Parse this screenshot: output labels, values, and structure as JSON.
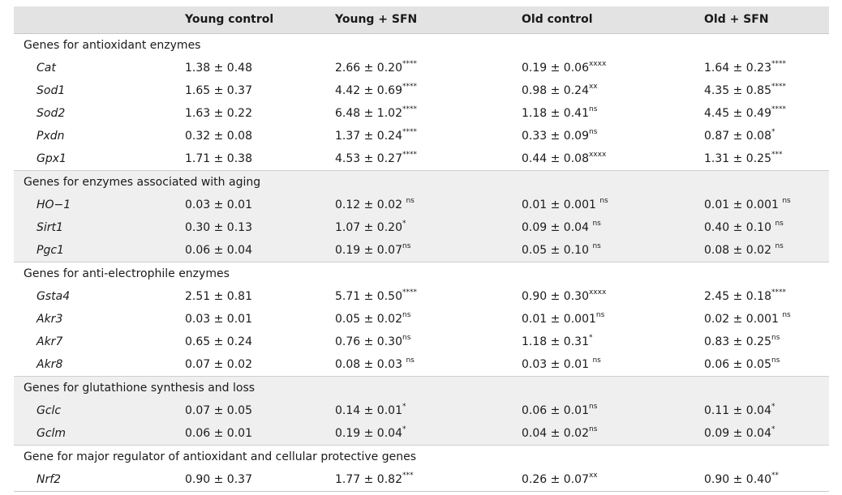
{
  "headers": [
    "",
    "Young control",
    "Young + SFN",
    "Old control",
    "Old + SFN"
  ],
  "sections": [
    {
      "title": "Genes for antioxidant enzymes",
      "shaded": false,
      "rows": [
        {
          "gene": "Cat",
          "values": [
            {
              "v": "1.38 ± 0.48",
              "s": ""
            },
            {
              "v": "2.66 ± 0.20",
              "s": "****"
            },
            {
              "v": "0.19 ± 0.06",
              "s": "xxxx"
            },
            {
              "v": "1.64 ± 0.23",
              "s": "****"
            }
          ]
        },
        {
          "gene": "Sod1",
          "values": [
            {
              "v": "1.65 ± 0.37",
              "s": ""
            },
            {
              "v": "4.42 ± 0.69",
              "s": "****"
            },
            {
              "v": "0.98 ± 0.24",
              "s": "xx"
            },
            {
              "v": "4.35 ± 0.85",
              "s": "****"
            }
          ]
        },
        {
          "gene": "Sod2",
          "values": [
            {
              "v": "1.63 ± 0.22",
              "s": ""
            },
            {
              "v": "6.48 ± 1.02",
              "s": "****"
            },
            {
              "v": "1.18 ± 0.41",
              "s": "ns"
            },
            {
              "v": "4.45 ± 0.49",
              "s": "****"
            }
          ]
        },
        {
          "gene": "Pxdn",
          "values": [
            {
              "v": "0.32 ± 0.08",
              "s": ""
            },
            {
              "v": "1.37 ± 0.24",
              "s": "****"
            },
            {
              "v": "0.33 ± 0.09",
              "s": "ns"
            },
            {
              "v": "0.87 ± 0.08",
              "s": "*"
            }
          ]
        },
        {
          "gene": "Gpx1",
          "values": [
            {
              "v": "1.71 ± 0.38",
              "s": ""
            },
            {
              "v": "4.53 ± 0.27",
              "s": "****"
            },
            {
              "v": "0.44 ± 0.08",
              "s": "xxxx"
            },
            {
              "v": "1.31 ± 0.25",
              "s": "***"
            }
          ]
        }
      ]
    },
    {
      "title": "Genes for enzymes associated with aging",
      "shaded": true,
      "rows": [
        {
          "gene": "HO−1",
          "values": [
            {
              "v": "0.03 ± 0.01",
              "s": ""
            },
            {
              "v": "0.12 ± 0.02 ",
              "s": "ns"
            },
            {
              "v": "0.01 ± 0.001 ",
              "s": "ns"
            },
            {
              "v": "0.01 ± 0.001 ",
              "s": "ns"
            }
          ]
        },
        {
          "gene": "Sirt1",
          "values": [
            {
              "v": "0.30 ± 0.13",
              "s": ""
            },
            {
              "v": "1.07 ± 0.20",
              "s": "*"
            },
            {
              "v": "0.09 ± 0.04 ",
              "s": "ns"
            },
            {
              "v": "0.40 ± 0.10 ",
              "s": "ns"
            }
          ]
        },
        {
          "gene": "Pgc1",
          "values": [
            {
              "v": "0.06 ± 0.04",
              "s": ""
            },
            {
              "v": "0.19 ± 0.07",
              "s": "ns"
            },
            {
              "v": "0.05 ± 0.10 ",
              "s": "ns"
            },
            {
              "v": "0.08 ± 0.02 ",
              "s": "ns"
            }
          ]
        }
      ]
    },
    {
      "title": "Genes for anti-electrophile enzymes",
      "shaded": false,
      "rows": [
        {
          "gene": "Gsta4",
          "values": [
            {
              "v": "2.51 ± 0.81",
              "s": ""
            },
            {
              "v": "5.71 ± 0.50",
              "s": "****"
            },
            {
              "v": "0.90 ± 0.30",
              "s": "xxxx"
            },
            {
              "v": "2.45 ± 0.18",
              "s": "****"
            }
          ]
        },
        {
          "gene": "Akr3",
          "values": [
            {
              "v": "0.03 ± 0.01",
              "s": ""
            },
            {
              "v": "0.05 ± 0.02",
              "s": "ns"
            },
            {
              "v": "0.01 ± 0.001",
              "s": "ns"
            },
            {
              "v": "0.02 ± 0.001 ",
              "s": "ns"
            }
          ]
        },
        {
          "gene": "Akr7",
          "values": [
            {
              "v": "0.65 ± 0.24",
              "s": ""
            },
            {
              "v": "0.76 ± 0.30",
              "s": "ns"
            },
            {
              "v": "1.18 ± 0.31",
              "s": "*"
            },
            {
              "v": "0.83 ± 0.25",
              "s": "ns"
            }
          ]
        },
        {
          "gene": "Akr8",
          "values": [
            {
              "v": "0.07 ± 0.02",
              "s": ""
            },
            {
              "v": "0.08 ± 0.03 ",
              "s": "ns"
            },
            {
              "v": "0.03 ± 0.01 ",
              "s": "ns"
            },
            {
              "v": "0.06 ± 0.05",
              "s": "ns"
            }
          ]
        }
      ]
    },
    {
      "title": "Genes for glutathione synthesis and loss",
      "shaded": true,
      "rows": [
        {
          "gene": "Gclc",
          "values": [
            {
              "v": "0.07 ± 0.05",
              "s": ""
            },
            {
              "v": "0.14 ± 0.01",
              "s": "*"
            },
            {
              "v": "0.06 ± 0.01",
              "s": "ns"
            },
            {
              "v": "0.11 ± 0.04",
              "s": "*"
            }
          ]
        },
        {
          "gene": "Gclm",
          "values": [
            {
              "v": "0.06 ± 0.01",
              "s": ""
            },
            {
              "v": "0.19 ± 0.04",
              "s": "*"
            },
            {
              "v": "0.04 ± 0.02",
              "s": "ns"
            },
            {
              "v": "0.09 ± 0.04",
              "s": "*"
            }
          ]
        }
      ]
    },
    {
      "title": "Gene for major regulator of antioxidant and cellular protective genes",
      "shaded": false,
      "rows": [
        {
          "gene": "Nrf2",
          "values": [
            {
              "v": "0.90 ± 0.37",
              "s": ""
            },
            {
              "v": "1.77 ± 0.82",
              "s": "***"
            },
            {
              "v": "0.26 ± 0.07",
              "s": "xx"
            },
            {
              "v": "0.90 ± 0.40",
              "s": "**"
            }
          ]
        }
      ]
    }
  ]
}
